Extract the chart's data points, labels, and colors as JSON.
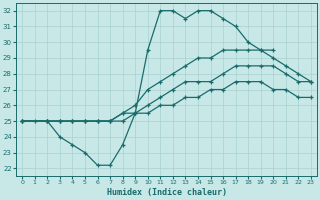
{
  "xlabel": "Humidex (Indice chaleur)",
  "bg_color": "#c8e8e8",
  "grid_color": "#a8d0d0",
  "line_color": "#1a6b6b",
  "xlim": [
    -0.5,
    23.5
  ],
  "ylim": [
    21.5,
    32.5
  ],
  "xticks": [
    0,
    1,
    2,
    3,
    4,
    5,
    6,
    7,
    8,
    9,
    10,
    11,
    12,
    13,
    14,
    15,
    16,
    17,
    18,
    19,
    20,
    21,
    22,
    23
  ],
  "yticks": [
    22,
    23,
    24,
    25,
    26,
    27,
    28,
    29,
    30,
    31,
    32
  ],
  "lines": [
    {
      "x": [
        0,
        1,
        2,
        3,
        4,
        5,
        6,
        7,
        8,
        9,
        10,
        11,
        12,
        13,
        14,
        15,
        16,
        17,
        18,
        19,
        20
      ],
      "y": [
        25,
        25,
        25,
        24,
        23.5,
        23,
        22.2,
        22.2,
        23.5,
        25.5,
        29.5,
        32,
        32,
        31.5,
        32,
        32,
        31.5,
        31,
        30,
        29.5,
        29.5
      ]
    },
    {
      "x": [
        0,
        2,
        3,
        4,
        5,
        6,
        7,
        8,
        9,
        10,
        11,
        12,
        13,
        14,
        15,
        16,
        17,
        18,
        19,
        20,
        21,
        22,
        23
      ],
      "y": [
        25,
        25,
        25,
        25,
        25,
        25,
        25,
        25.5,
        26,
        27,
        27.5,
        28,
        28.5,
        29,
        29,
        29.5,
        29.5,
        29.5,
        29.5,
        29,
        28.5,
        28,
        27.5
      ]
    },
    {
      "x": [
        0,
        2,
        3,
        4,
        5,
        6,
        7,
        8,
        9,
        10,
        11,
        12,
        13,
        14,
        15,
        16,
        17,
        18,
        19,
        20,
        21,
        22,
        23
      ],
      "y": [
        25,
        25,
        25,
        25,
        25,
        25,
        25,
        25.5,
        25.5,
        26,
        26.5,
        27,
        27.5,
        27.5,
        27.5,
        28,
        28.5,
        28.5,
        28.5,
        28.5,
        28,
        27.5,
        27.5
      ]
    },
    {
      "x": [
        0,
        2,
        3,
        4,
        5,
        6,
        7,
        8,
        9,
        10,
        11,
        12,
        13,
        14,
        15,
        16,
        17,
        18,
        19,
        20,
        21,
        22,
        23
      ],
      "y": [
        25,
        25,
        25,
        25,
        25,
        25,
        25,
        25,
        25.5,
        25.5,
        26,
        26,
        26.5,
        26.5,
        27,
        27,
        27.5,
        27.5,
        27.5,
        27,
        27,
        26.5,
        26.5
      ]
    }
  ]
}
